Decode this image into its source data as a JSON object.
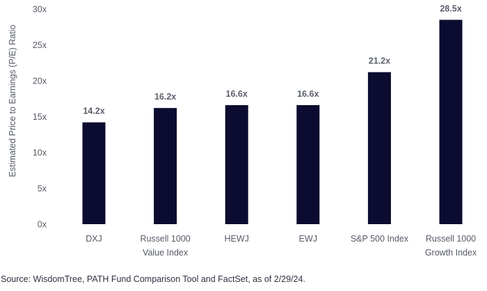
{
  "chart_data": {
    "type": "bar",
    "categories": [
      [
        "DXJ"
      ],
      [
        "Russell 1000",
        "Value Index"
      ],
      [
        "HEWJ"
      ],
      [
        "EWJ"
      ],
      [
        "S&P 500 Index"
      ],
      [
        "Russell 1000",
        "Growth Index"
      ]
    ],
    "values": [
      14.2,
      16.2,
      16.6,
      16.6,
      21.2,
      28.5
    ],
    "data_labels": [
      "14.2x",
      "16.2x",
      "16.6x",
      "16.6x",
      "21.2x",
      "28.5x"
    ],
    "ylabel": "Estimated Price to Earnings (P/E) Ratio",
    "xlabel": "",
    "ylim": [
      0,
      30
    ],
    "yticks": [
      0,
      5,
      10,
      15,
      20,
      25,
      30
    ],
    "ytick_labels": [
      "0x",
      "5x",
      "10x",
      "15x",
      "20x",
      "25x",
      "30x"
    ],
    "grid": false,
    "bar_color": "#0c0c30"
  },
  "source": "Source: WisdomTree, PATH Fund Comparison Tool and FactSet, as of 2/29/24."
}
